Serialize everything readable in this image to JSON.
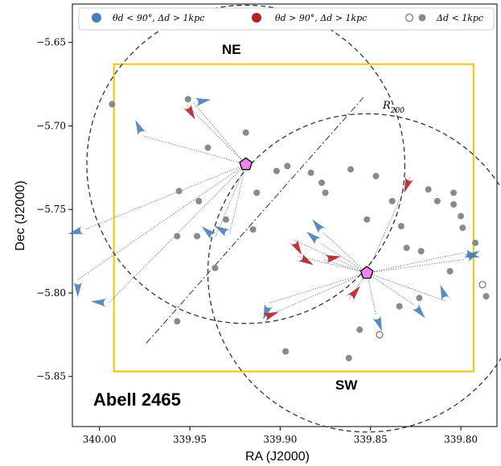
{
  "chart_data": {
    "type": "scatter",
    "xlabel": "RA (J2000)",
    "ylabel": "Dec (J2000)",
    "xlim": [
      340.015,
      339.78
    ],
    "ylim": [
      -5.88,
      -5.627
    ],
    "x_ticks": [
      340.0,
      339.95,
      339.9,
      339.85,
      339.8
    ],
    "x_tick_labels": [
      "340.00",
      "339.95",
      "339.90",
      "339.85",
      "339.80"
    ],
    "y_ticks": [
      -5.65,
      -5.7,
      -5.75,
      -5.8,
      -5.85
    ],
    "y_tick_labels": [
      "−5.65",
      "−5.70",
      "−5.75",
      "−5.80",
      "−5.85"
    ],
    "grid": false,
    "legend_position": "top",
    "cluster_name": "Abell 2465",
    "region_labels": {
      "ne": "NE",
      "sw": "SW"
    },
    "r200_label": "R200",
    "legend": {
      "blue": "θd < 90°, Δd > 1kpc",
      "red": "θd > 90°, Δd > 1kpc",
      "grey": "Δd < 1kpc"
    },
    "colors": {
      "blue": "#4a7fb5",
      "red": "#b22222",
      "grey": "#8a8a8a",
      "frame": "#f2c500",
      "pentagon": "#ee82ee"
    },
    "centers": {
      "ne": {
        "ra": 339.919,
        "dec": -5.723
      },
      "sw": {
        "ra": 339.852,
        "dec": -5.788
      }
    },
    "r200_radius_ra": 0.088,
    "square": {
      "ra_min": 339.793,
      "ra_max": 339.992,
      "dec_min": -5.847,
      "dec_max": -5.663
    },
    "r200_line": {
      "ra1": 339.974,
      "dec1": -5.83,
      "ra2": 339.854,
      "dec2": -5.683
    },
    "series": [
      {
        "name": "θd < 90°, Δd > 1kpc",
        "points": [
          {
            "x": 339.976,
            "y": -5.706,
            "dir": 115
          },
          {
            "x": 339.948,
            "y": -5.686,
            "dir": 10
          },
          {
            "x": 340.008,
            "y": -5.762,
            "dir": 195
          },
          {
            "x": 340.012,
            "y": -5.792,
            "dir": 270
          },
          {
            "x": 339.995,
            "y": -5.806,
            "dir": 175
          },
          {
            "x": 339.936,
            "y": -5.767,
            "dir": 140
          },
          {
            "x": 339.928,
            "y": -5.765,
            "dir": 150
          },
          {
            "x": 339.906,
            "y": -5.806,
            "dir": 250
          },
          {
            "x": 339.876,
            "y": -5.764,
            "dir": 130
          },
          {
            "x": 339.878,
            "y": -5.77,
            "dir": 140
          },
          {
            "x": 339.847,
            "y": -5.813,
            "dir": 290
          },
          {
            "x": 339.826,
            "y": -5.807,
            "dir": 310
          },
          {
            "x": 339.799,
            "y": -5.776,
            "dir": 345
          },
          {
            "x": 339.798,
            "y": -5.78,
            "dir": 30
          },
          {
            "x": 339.808,
            "y": -5.805,
            "dir": 110
          }
        ]
      },
      {
        "name": "θd > 90°, Δd > 1kpc",
        "points": [
          {
            "x": 339.952,
            "y": -5.687,
            "dir": 300
          },
          {
            "x": 339.893,
            "y": -5.768,
            "dir": 300
          },
          {
            "x": 339.89,
            "y": -5.778,
            "dir": 330
          },
          {
            "x": 339.876,
            "y": -5.78,
            "dir": 10
          },
          {
            "x": 339.828,
            "y": -5.73,
            "dir": 250
          },
          {
            "x": 339.91,
            "y": -5.815,
            "dir": 20
          },
          {
            "x": 339.862,
            "y": -5.804,
            "dir": 50
          }
        ]
      },
      {
        "name": "Δd < 1kpc",
        "points": [
          {
            "x": 339.993,
            "y": -5.687,
            "filled": true
          },
          {
            "x": 339.951,
            "y": -5.684,
            "filled": true
          },
          {
            "x": 339.94,
            "y": -5.713,
            "filled": true
          },
          {
            "x": 339.919,
            "y": -5.704,
            "filled": true
          },
          {
            "x": 339.902,
            "y": -5.727,
            "filled": true
          },
          {
            "x": 339.896,
            "y": -5.724,
            "filled": true
          },
          {
            "x": 339.883,
            "y": -5.728,
            "filled": true
          },
          {
            "x": 339.877,
            "y": -5.734,
            "filled": true
          },
          {
            "x": 339.875,
            "y": -5.74,
            "filled": true
          },
          {
            "x": 339.861,
            "y": -5.726,
            "filled": true
          },
          {
            "x": 339.847,
            "y": -5.73,
            "filled": true
          },
          {
            "x": 339.852,
            "y": -5.756,
            "filled": true
          },
          {
            "x": 339.838,
            "y": -5.745,
            "filled": true
          },
          {
            "x": 339.833,
            "y": -5.76,
            "filled": true
          },
          {
            "x": 339.83,
            "y": -5.773,
            "filled": true
          },
          {
            "x": 339.822,
            "y": -5.775,
            "filled": true
          },
          {
            "x": 339.813,
            "y": -5.745,
            "filled": true
          },
          {
            "x": 339.818,
            "y": -5.738,
            "filled": true
          },
          {
            "x": 339.804,
            "y": -5.74,
            "filled": true
          },
          {
            "x": 339.804,
            "y": -5.747,
            "filled": true
          },
          {
            "x": 339.8,
            "y": -5.754,
            "filled": true
          },
          {
            "x": 339.799,
            "y": -5.761,
            "filled": true
          },
          {
            "x": 339.792,
            "y": -5.77,
            "filled": true
          },
          {
            "x": 339.806,
            "y": -5.787,
            "filled": true
          },
          {
            "x": 339.786,
            "y": -5.802,
            "filled": true
          },
          {
            "x": 339.956,
            "y": -5.739,
            "filled": true
          },
          {
            "x": 339.945,
            "y": -5.745,
            "filled": true
          },
          {
            "x": 339.93,
            "y": -5.756,
            "filled": true
          },
          {
            "x": 339.915,
            "y": -5.762,
            "filled": true
          },
          {
            "x": 339.913,
            "y": -5.74,
            "filled": true
          },
          {
            "x": 339.957,
            "y": -5.766,
            "filled": true
          },
          {
            "x": 339.946,
            "y": -5.766,
            "filled": true
          },
          {
            "x": 339.897,
            "y": -5.835,
            "filled": true
          },
          {
            "x": 339.862,
            "y": -5.839,
            "filled": true
          },
          {
            "x": 339.957,
            "y": -5.817,
            "filled": true
          },
          {
            "x": 339.936,
            "y": -5.785,
            "filled": true
          },
          {
            "x": 339.856,
            "y": -5.822,
            "filled": true
          },
          {
            "x": 339.823,
            "y": -5.803,
            "filled": true
          },
          {
            "x": 339.834,
            "y": -5.808,
            "filled": true
          },
          {
            "x": 339.845,
            "y": -5.825,
            "filled": false
          },
          {
            "x": 339.788,
            "y": -5.795,
            "filled": false
          }
        ]
      }
    ]
  }
}
